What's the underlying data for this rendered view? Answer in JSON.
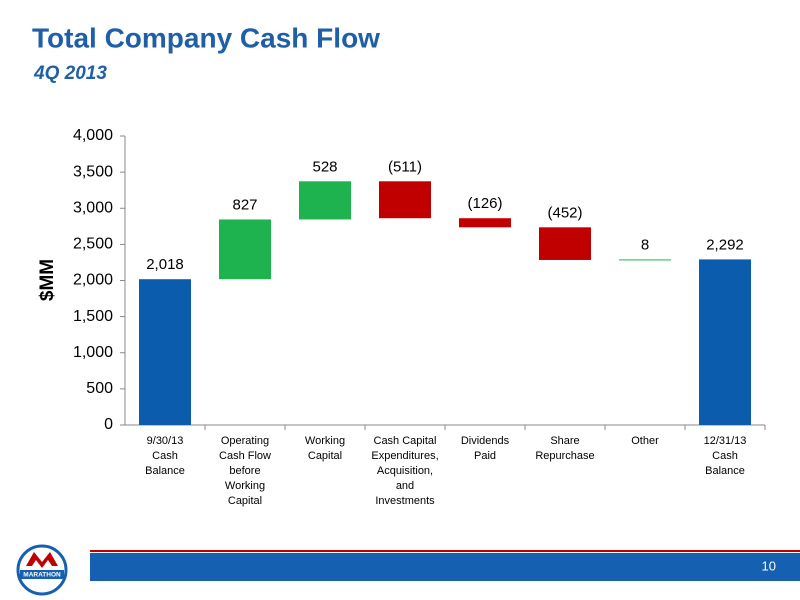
{
  "chart_data": {
    "type": "waterfall",
    "title": "Total Company Cash Flow",
    "subtitle": "4Q 2013",
    "y_label": "$MM",
    "categories": [
      [
        "9/30/13",
        "Cash",
        "Balance"
      ],
      [
        "Operating",
        "Cash Flow",
        "before",
        "Working",
        "Capital"
      ],
      [
        "Working",
        "Capital"
      ],
      [
        "Cash Capital",
        "Expenditures,",
        "Acquisition,",
        "and",
        "Investments"
      ],
      [
        "Dividends",
        "Paid"
      ],
      [
        "Share",
        "Repurchase"
      ],
      [
        "Other"
      ],
      [
        "12/31/13",
        "Cash",
        "Balance"
      ]
    ],
    "values": [
      2018,
      827,
      528,
      -511,
      -126,
      -452,
      8,
      2292
    ],
    "value_labels": [
      "2,018",
      "827",
      "528",
      "(511)",
      "(126)",
      "(452)",
      "8",
      "2,292"
    ],
    "is_total": [
      true,
      false,
      false,
      false,
      false,
      false,
      false,
      true
    ],
    "total_color": "#0b5cad",
    "increase_color": "#1fb34f",
    "decrease_color": "#c00000",
    "ylim": [
      0,
      4000
    ],
    "yticks": [
      0,
      500,
      {
        "value": 1000,
        "label": "1,000"
      },
      {
        "value": 1500,
        "label": "1,500"
      },
      {
        "value": 2000,
        "label": "2,000"
      },
      {
        "value": 2500,
        "label": "2,500"
      },
      {
        "value": 3000,
        "label": "3,000"
      },
      {
        "value": 3500,
        "label": "3,500"
      },
      {
        "value": 4000,
        "label": "4,000"
      }
    ]
  },
  "footer": {
    "page_number": "10",
    "logo_text": "MARATHON"
  }
}
